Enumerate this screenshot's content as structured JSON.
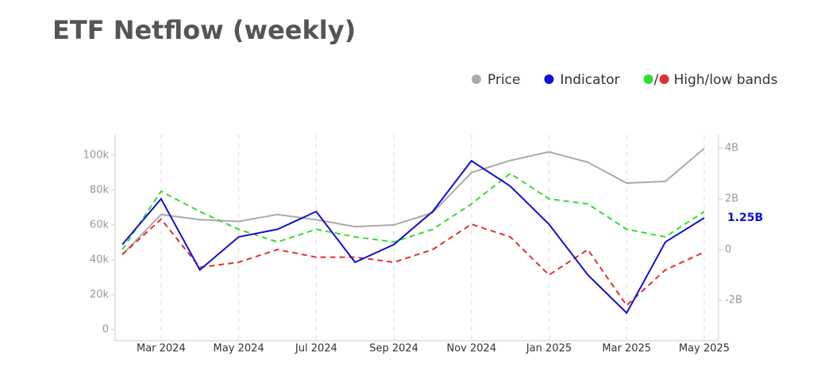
{
  "chart_data": {
    "type": "line",
    "title": "ETF Netflow (weekly)",
    "x": [
      "2024-02",
      "2024-03",
      "2024-04",
      "2024-05",
      "2024-06",
      "2024-07",
      "2024-08",
      "2024-09",
      "2024-10",
      "2024-11",
      "2024-12",
      "2025-01",
      "2025-02",
      "2025-03",
      "2025-04",
      "2025-05"
    ],
    "xlim": [
      "2024-02",
      "2025-05"
    ],
    "xticks": [
      {
        "value": "2024-03",
        "label": "Mar 2024"
      },
      {
        "value": "2024-05",
        "label": "May 2024"
      },
      {
        "value": "2024-07",
        "label": "Jul 2024"
      },
      {
        "value": "2024-09",
        "label": "Sep 2024"
      },
      {
        "value": "2024-11",
        "label": "Nov 2024"
      },
      {
        "value": "2025-01",
        "label": "Jan 2025"
      },
      {
        "value": "2025-03",
        "label": "Mar 2025"
      },
      {
        "value": "2025-05",
        "label": "May 2025"
      }
    ],
    "ylim": [
      -5500,
      111800
    ],
    "yticks": [
      0,
      {
        "value": 20000,
        "label": "20k"
      },
      {
        "value": 40000,
        "label": "40k"
      },
      {
        "value": 60000,
        "label": "60k"
      },
      {
        "value": 80000,
        "label": "80k"
      },
      {
        "value": 100000,
        "label": "100k"
      }
    ],
    "y2lim": [
      -3530000000,
      4530000000
    ],
    "y2ticks": [
      {
        "value": -2000000000,
        "label": "-2B"
      },
      0,
      {
        "value": 2000000000,
        "label": "2B"
      },
      {
        "value": 4000000000,
        "label": "4B"
      }
    ],
    "grid": true,
    "series": [
      {
        "name": "Price",
        "color": "#aaaaaa",
        "values": [
          43000,
          66000,
          63000,
          62000,
          66000,
          63000,
          59000,
          60000,
          67000,
          90000,
          97000,
          102000,
          96000,
          84000,
          85000,
          104000
        ]
      },
      {
        "name": "Indicator",
        "color": "#1010d0",
        "axis": "y2",
        "values": [
          200000000,
          2000000000,
          -800000000,
          500000000,
          800000000,
          1500000000,
          -500000000,
          200000000,
          1500000000,
          3500000000,
          2500000000,
          1000000000,
          -1000000000,
          -2500000000,
          300000000,
          1250000000
        ],
        "value_labels": [
          null,
          null,
          null,
          null,
          null,
          null,
          null,
          null,
          null,
          null,
          null,
          null,
          null,
          null,
          null,
          "1.25B"
        ]
      }
    ],
    "bands": {
      "label": "High/low bands",
      "separator": "/",
      "high": {
        "color": "#33dd33",
        "axis": "y2",
        "values": [
          0,
          2300000000,
          1500000000,
          800000000,
          300000000,
          800000000,
          500000000,
          300000000,
          800000000,
          1800000000,
          3000000000,
          2000000000,
          1800000000,
          800000000,
          500000000,
          1500000000
        ]
      },
      "low": {
        "color": "#e03030",
        "axis": "y2",
        "values": [
          -200000000,
          1200000000,
          -700000000,
          -500000000,
          0,
          -300000000,
          -300000000,
          -500000000,
          0,
          1000000000,
          500000000,
          -1000000000,
          0,
          -2200000000,
          -800000000,
          -100000000
        ]
      }
    }
  }
}
